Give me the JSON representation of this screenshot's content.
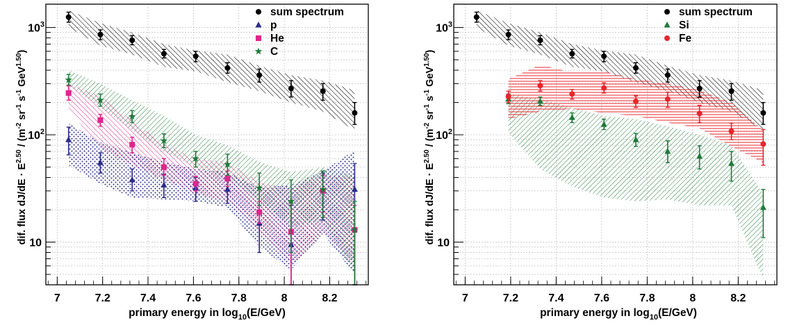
{
  "colors": {
    "sum": "#000000",
    "p": "#2b2b8c",
    "He": "#e0248c",
    "C": "#1f7a3a",
    "Si": "#1f7a3a",
    "Fe": "#e8252b",
    "grid": "#bdbdbd",
    "frame": "#000000"
  },
  "chart_data": [
    {
      "type": "scatter",
      "xlabel_main": "primary energy in log",
      "xlabel_sub": "10",
      "xlabel_tail": "(E/GeV)",
      "ylabel": "dif. flux dJ/dE · E^2.50 / (m^-2 sr^-1 s^-1 GeV^1.50)",
      "ylabel_parts": {
        "a": "dif. flux dJ/dE · E",
        "a_sup": "2.50",
        "b": " / (m",
        "b_sup": "-2",
        "c": " sr",
        "c_sup": "-1",
        "d": " s",
        "d_sup": "-1",
        "e": " GeV",
        "e_sup": "1.50",
        "f": ")"
      },
      "log_y": true,
      "xlim": [
        6.95,
        8.37
      ],
      "ylim": [
        4,
        1650
      ],
      "grid": true,
      "legend_position": "top-right",
      "xticks": [
        "7",
        "7.2",
        "7.4",
        "7.6",
        "7.8",
        "8",
        "8.2"
      ],
      "yticks": [
        {
          "label": "10",
          "base": "10",
          "exp": "",
          "value": 10
        },
        {
          "label": "10^2",
          "base": "10",
          "exp": "2",
          "value": 100
        },
        {
          "label": "10^3",
          "base": "10",
          "exp": "3",
          "value": 1000
        }
      ],
      "series": [
        {
          "name": "sum spectrum",
          "key": "sum",
          "marker": "circle",
          "x": [
            7.05,
            7.19,
            7.33,
            7.47,
            7.61,
            7.75,
            7.89,
            8.03,
            8.17,
            8.31
          ],
          "y": [
            1250,
            860,
            760,
            570,
            540,
            420,
            360,
            270,
            255,
            160
          ],
          "err_lo": [
            1120,
            770,
            690,
            520,
            480,
            375,
            310,
            225,
            210,
            125
          ],
          "err_hi": [
            1390,
            950,
            840,
            625,
            600,
            470,
            410,
            320,
            300,
            200
          ],
          "band_lo": [
            1000,
            680,
            560,
            430,
            390,
            310,
            255,
            200,
            165,
            110
          ],
          "band_hi": [
            1450,
            1100,
            900,
            700,
            610,
            560,
            440,
            360,
            320,
            260
          ],
          "band_style": "diag45"
        },
        {
          "name": "p",
          "key": "p",
          "marker": "triangle",
          "x": [
            7.05,
            7.19,
            7.33,
            7.47,
            7.61,
            7.75,
            7.89,
            8.03,
            8.17,
            8.31
          ],
          "y": [
            90,
            55,
            38,
            34,
            32,
            31,
            15,
            9.5,
            30,
            31
          ],
          "err_lo": [
            65,
            44,
            30,
            26,
            24,
            23,
            8,
            4,
            16,
            4
          ],
          "err_hi": [
            118,
            68,
            48,
            43,
            40,
            40,
            22,
            22,
            44,
            54
          ],
          "band_lo": [
            52,
            35,
            26,
            25,
            24,
            21,
            9,
            5.5,
            12,
            5
          ],
          "band_hi": [
            128,
            85,
            68,
            56,
            48,
            45,
            32,
            34,
            46,
            72
          ],
          "band_style": "dots"
        },
        {
          "name": "He",
          "key": "He",
          "marker": "square",
          "x": [
            7.05,
            7.19,
            7.33,
            7.47,
            7.61,
            7.75,
            7.89,
            8.03,
            8.17,
            8.31
          ],
          "y": [
            245,
            137,
            81,
            50,
            35,
            39,
            19,
            12.5,
            30,
            13
          ],
          "err_lo": [
            210,
            120,
            68,
            42,
            30,
            33,
            15,
            4,
            19,
            4
          ],
          "err_hi": [
            285,
            155,
            95,
            60,
            41,
            46,
            24,
            23,
            42,
            22
          ],
          "band_lo": [
            170,
            75,
            52,
            38,
            28,
            24,
            13,
            6,
            12,
            6
          ],
          "band_hi": [
            300,
            230,
            135,
            82,
            60,
            56,
            36,
            32,
            42,
            40
          ],
          "band_style": "diag45"
        },
        {
          "name": "C",
          "key": "C",
          "marker": "star",
          "x": [
            7.05,
            7.19,
            7.33,
            7.47,
            7.61,
            7.75,
            7.89,
            8.03,
            8.17,
            8.31
          ],
          "y": [
            325,
            210,
            148,
            88,
            60,
            53,
            32,
            24,
            31,
            13
          ],
          "err_lo": [
            290,
            185,
            130,
            76,
            50,
            42,
            22,
            8,
            17,
            4
          ],
          "err_hi": [
            365,
            240,
            168,
            102,
            70,
            66,
            44,
            38,
            46,
            24
          ],
          "band_lo": [
            290,
            180,
            110,
            70,
            50,
            40,
            24,
            14,
            16,
            5
          ],
          "band_hi": [
            400,
            300,
            210,
            150,
            100,
            80,
            56,
            45,
            50,
            42
          ],
          "band_style": "diag135"
        }
      ]
    },
    {
      "type": "scatter",
      "xlabel_main": "primary energy in log",
      "xlabel_sub": "10",
      "xlabel_tail": "(E/GeV)",
      "ylabel": "dif. flux dJ/dE · E^2.50 / (m^-2 sr^-1 s^-1 GeV^1.50)",
      "ylabel_parts": {
        "a": "dif. flux dJ/dE · E",
        "a_sup": "2.50",
        "b": " / (m",
        "b_sup": "-2",
        "c": " sr",
        "c_sup": "-1",
        "d": " s",
        "d_sup": "-1",
        "e": " GeV",
        "e_sup": "1.50",
        "f": ")"
      },
      "log_y": true,
      "xlim": [
        6.95,
        8.37
      ],
      "ylim": [
        4,
        1650
      ],
      "grid": true,
      "legend_position": "top-right",
      "xticks": [
        "7",
        "7.2",
        "7.4",
        "7.6",
        "7.8",
        "8",
        "8.2"
      ],
      "yticks": [
        {
          "label": "10",
          "base": "10",
          "exp": "",
          "value": 10
        },
        {
          "label": "10^2",
          "base": "10",
          "exp": "2",
          "value": 100
        },
        {
          "label": "10^3",
          "base": "10",
          "exp": "3",
          "value": 1000
        }
      ],
      "series": [
        {
          "name": "sum spectrum",
          "key": "sum",
          "marker": "circle",
          "x": [
            7.05,
            7.19,
            7.33,
            7.47,
            7.61,
            7.75,
            7.89,
            8.03,
            8.17,
            8.31
          ],
          "y": [
            1250,
            860,
            760,
            570,
            540,
            420,
            360,
            270,
            255,
            160
          ],
          "err_lo": [
            1120,
            770,
            690,
            520,
            480,
            375,
            310,
            225,
            210,
            125
          ],
          "err_hi": [
            1390,
            950,
            840,
            625,
            600,
            470,
            410,
            320,
            300,
            200
          ],
          "band_lo": [
            1000,
            680,
            560,
            430,
            390,
            310,
            255,
            200,
            165,
            110
          ],
          "band_hi": [
            1450,
            1100,
            900,
            700,
            610,
            560,
            440,
            360,
            320,
            260
          ],
          "band_style": "diag45"
        },
        {
          "name": "Si",
          "key": "Si",
          "marker": "triangle",
          "x": [
            7.19,
            7.33,
            7.47,
            7.61,
            7.75,
            7.89,
            8.03,
            8.17,
            8.31
          ],
          "y": [
            215,
            205,
            145,
            125,
            90,
            70,
            63,
            54,
            21
          ],
          "err_lo": [
            195,
            188,
            130,
            112,
            78,
            55,
            48,
            37,
            11
          ],
          "err_hi": [
            240,
            225,
            160,
            140,
            103,
            88,
            79,
            70,
            31
          ],
          "band_lo": [
            105,
            48,
            33,
            26,
            24,
            25,
            22,
            22,
            4.5
          ],
          "band_hi": [
            240,
            215,
            180,
            150,
            140,
            120,
            100,
            80,
            28
          ],
          "band_style": "diag45"
        },
        {
          "name": "Fe",
          "key": "Fe",
          "marker": "circle",
          "x": [
            7.19,
            7.33,
            7.47,
            7.61,
            7.75,
            7.89,
            8.03,
            8.17,
            8.31
          ],
          "y": [
            228,
            287,
            240,
            273,
            205,
            215,
            158,
            108,
            82
          ],
          "err_lo": [
            200,
            255,
            215,
            245,
            180,
            180,
            130,
            90,
            52
          ],
          "err_hi": [
            255,
            320,
            265,
            305,
            230,
            250,
            188,
            128,
            112
          ],
          "band_lo": [
            140,
            165,
            175,
            160,
            150,
            130,
            115,
            78,
            55
          ],
          "band_hi": [
            330,
            450,
            380,
            390,
            330,
            300,
            260,
            200,
            110
          ],
          "band_style": "horizontal"
        }
      ]
    }
  ]
}
